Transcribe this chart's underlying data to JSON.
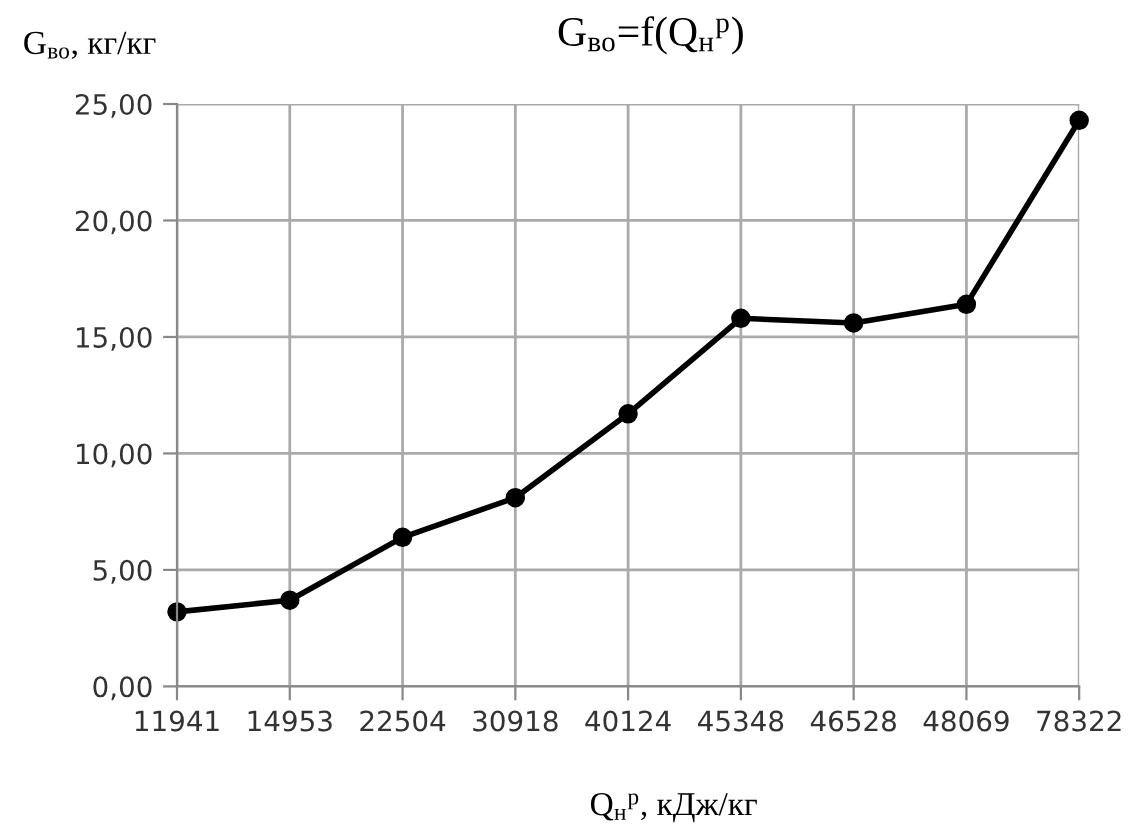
{
  "chart_data": {
    "type": "line",
    "title": "G$_{во}$=f(Q$_{н}$$^{р}$)",
    "xlabel": "Q$_{н}$$^{р}$, кДж/кг",
    "ylabel": "G$_{во}$, кг/кг",
    "categories": [
      "11941",
      "14953",
      "22504",
      "30918",
      "40124",
      "45348",
      "46528",
      "48069",
      "78322"
    ],
    "series": [
      {
        "color": "#000000",
        "values": [
          3.2,
          3.7,
          6.4,
          8.1,
          11.7,
          15.8,
          15.6,
          16.4,
          24.3
        ]
      }
    ],
    "ylim": [
      0,
      25
    ],
    "yticks": [
      {
        "value": 0,
        "label": "0,00"
      },
      {
        "value": 5,
        "label": "5,00"
      },
      {
        "value": 10,
        "label": "10,00"
      },
      {
        "value": 15,
        "label": "15,00"
      },
      {
        "value": 20,
        "label": "20,00"
      },
      {
        "value": 25,
        "label": "25,00"
      }
    ],
    "grid": true,
    "marker": "circle",
    "line_style": "solid"
  }
}
